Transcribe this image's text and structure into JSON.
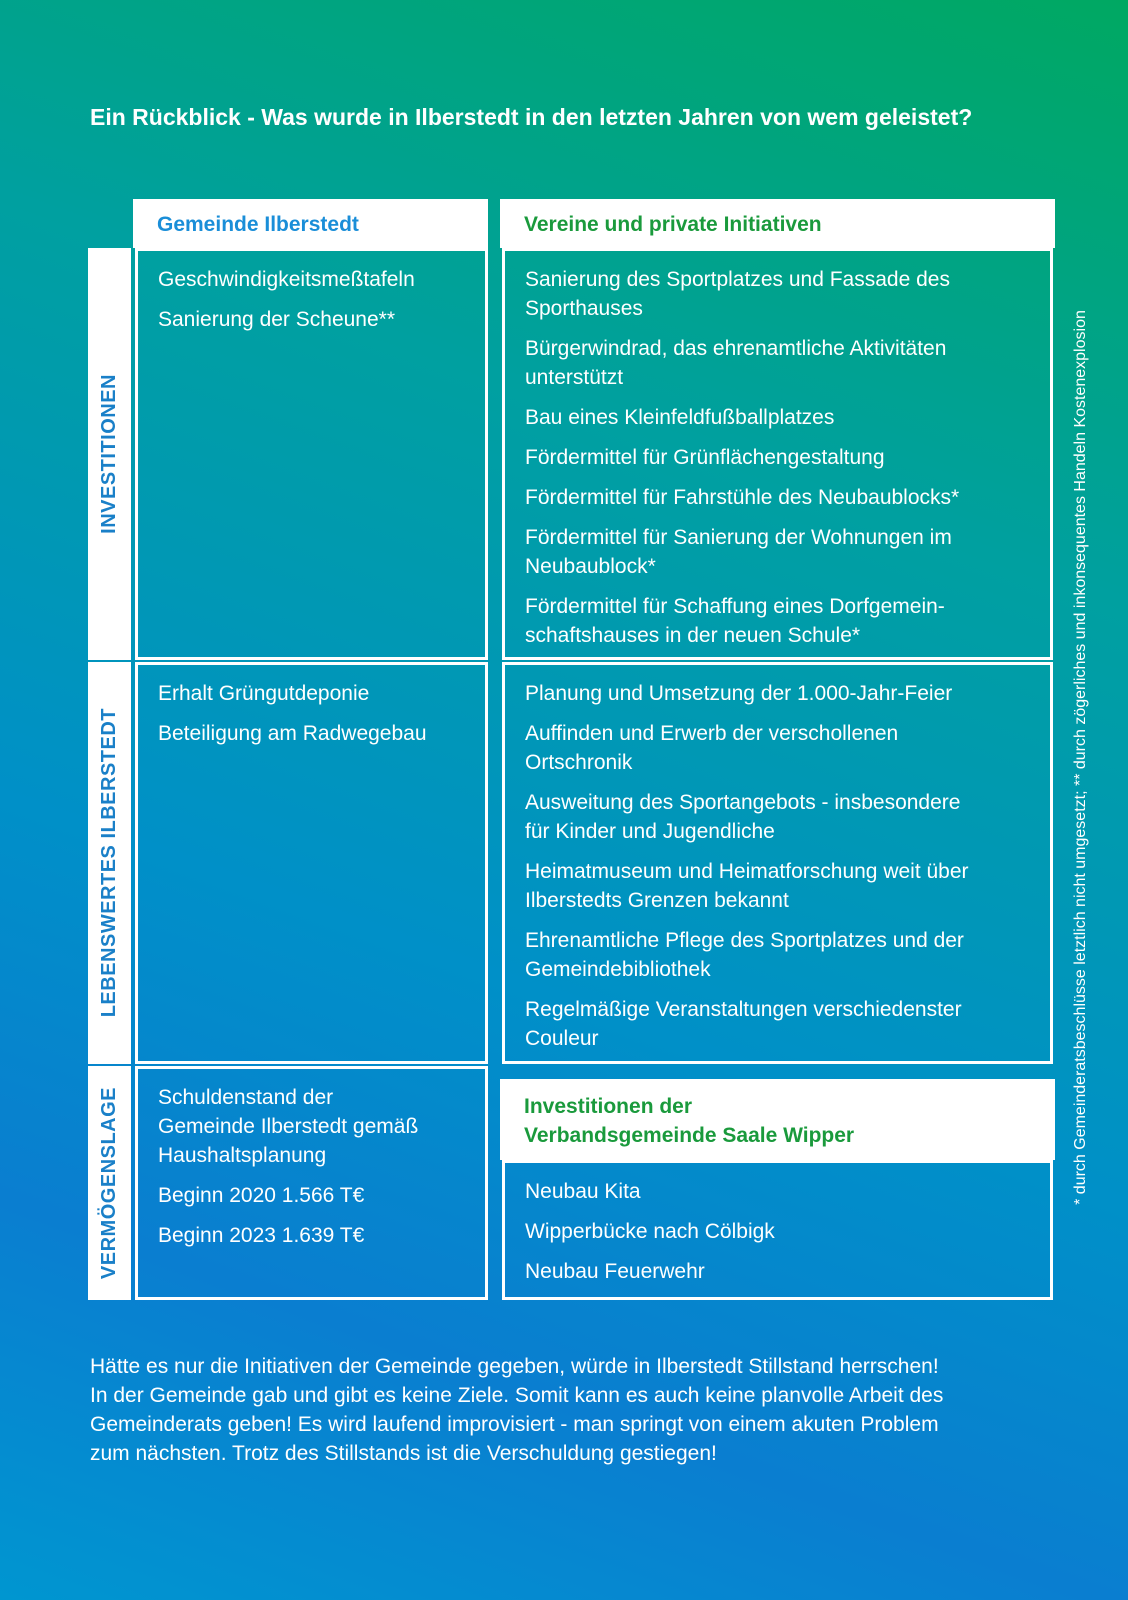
{
  "title": "Ein Rückblick - Was wurde in Ilberstedt in den letzten Jahren von wem geleistet?",
  "columns": [
    "Gemeinde Ilberstedt",
    "Vereine und private Initiativen"
  ],
  "rows": [
    {
      "label": "INVESTITIONEN",
      "left": [
        "Geschwindigkeitsmeßtafeln",
        "Sanierung der Scheune**"
      ],
      "right": [
        "Sanierung des Sportplatzes und Fassade des\nSporthauses",
        "Bürgerwindrad, das ehrenamtliche Aktivitäten\nunterstützt",
        "Bau eines Kleinfeldfußballplatzes",
        "Fördermittel für Grünflächengestaltung",
        "Fördermittel für Fahrstühle des Neubaublocks*",
        "Fördermittel für Sanierung der Wohnungen im\nNeubaublock*",
        "Fördermittel für Schaffung eines Dorfgemein-\nschaftshauses in der neuen Schule*"
      ]
    },
    {
      "label": "LEBENSWERTES ILBERSTEDT",
      "left": [
        "Erhalt Grüngutdeponie",
        "Beteiligung am Radwegebau"
      ],
      "right": [
        "Planung und Umsetzung der 1.000-Jahr-Feier",
        "Auffinden und Erwerb der verschollenen\nOrtschronik",
        "Ausweitung des Sportangebots - insbesondere\nfür Kinder und Jugendliche",
        "Heimatmuseum und Heimatforschung weit über\nIlberstedts Grenzen bekannt",
        "Ehrenamtliche Pflege des Sportplatzes und der\nGemeindebibliothek",
        "Regelmäßige Veranstaltungen verschiedenster\nCouleur"
      ]
    },
    {
      "label": "VERMÖGENSLAGE",
      "left": [
        "Schuldenstand der\nGemeinde Ilberstedt gemäß\nHaushaltsplanung",
        "Beginn 2020  1.566 T€",
        "Beginn 2023  1.639 T€"
      ],
      "right_header": "Investitionen der\nVerbandsgemeinde Saale Wipper",
      "right": [
        "Neubau Kita",
        "Wipperbücke nach Cölbigk",
        "Neubau Feuerwehr"
      ]
    }
  ],
  "side_note": "* durch Gemeinderatsbeschlüsse letztlich nicht umgesetzt; ** durch zögerliches und inkonsequentes Handeln Kostenexplosion",
  "footer": "Hätte es nur die Initiativen der Gemeinde gegeben, würde in Ilberstedt Stillstand herrschen!\nIn der Gemeinde gab und gibt es keine Ziele. Somit kann es auch keine planvolle Arbeit des\nGemeinderats geben! Es wird laufend improvisiert - man springt von einem akuten Problem\nzum nächsten. Trotz des Stillstands ist die Verschuldung gestiegen!"
}
